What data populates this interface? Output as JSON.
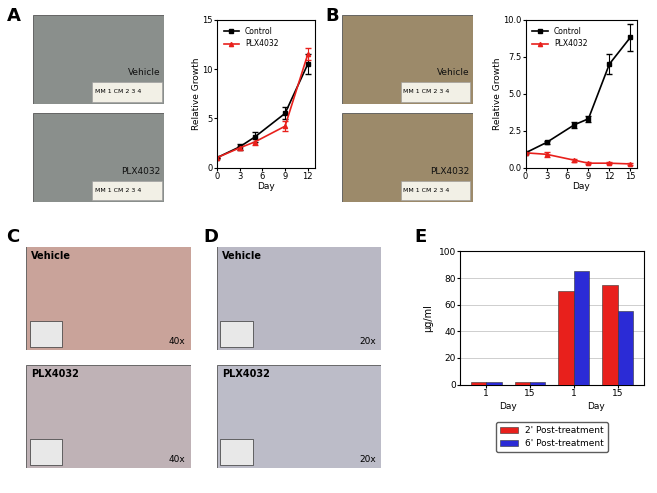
{
  "panel_labels": [
    "A",
    "B",
    "C",
    "D",
    "E"
  ],
  "images": [
    {
      "panel": "A",
      "label": "Vehicle",
      "ruler": "MM 1 CM 2 3 4"
    },
    {
      "panel": "A",
      "label": "PLX4032",
      "ruler": "MM 1 CM 2 3 4"
    },
    {
      "panel": "B",
      "label": "Vehicle",
      "ruler": "MM 1 CM 2 3 4"
    },
    {
      "panel": "B",
      "label": "PLX4032",
      "ruler": "MM 1 CM 2 3 4"
    },
    {
      "panel": "C",
      "label": "Vehicle",
      "magnification": "40x"
    },
    {
      "panel": "C",
      "label": "PLX4032",
      "magnification": "40x"
    },
    {
      "panel": "D",
      "label": "Vehicle",
      "magnification": "20x"
    },
    {
      "panel": "D",
      "label": "PLX4032",
      "magnification": "20x"
    }
  ],
  "chart_data": [
    {
      "panel": "A",
      "type": "line",
      "x_label": "Day",
      "y_label": "Relative Growth",
      "xlim": [
        0,
        13
      ],
      "xticks": [
        0,
        3,
        6,
        9,
        12
      ],
      "ylim": [
        0,
        15
      ],
      "yticks": [
        0,
        5,
        10,
        15
      ],
      "legend": "upper left",
      "series": [
        {
          "name": "Control",
          "color": "#000000",
          "marker": "square",
          "x": [
            0,
            3,
            5,
            9,
            12
          ],
          "values": [
            1,
            2.1,
            3.1,
            5.5,
            10.5
          ],
          "errors": [
            0,
            0.3,
            0.5,
            0.6,
            1.0
          ]
        },
        {
          "name": "PLX4032",
          "color": "#e8201c",
          "marker": "triangle",
          "x": [
            0,
            3,
            5,
            9,
            12
          ],
          "values": [
            1,
            2.0,
            2.6,
            4.2,
            11.5
          ],
          "errors": [
            0,
            0.2,
            0.3,
            0.5,
            0.6
          ]
        }
      ]
    },
    {
      "panel": "B",
      "type": "line",
      "x_label": "Day",
      "y_label": "Relative Growth",
      "xlim": [
        0,
        16
      ],
      "xticks": [
        0,
        3,
        6,
        9,
        12,
        15
      ],
      "ylim": [
        0,
        10
      ],
      "yticks": [
        {
          "value": 0,
          "label": "0.0"
        },
        {
          "value": 2.5,
          "label": "2.5"
        },
        {
          "value": 5,
          "label": "5.0"
        },
        {
          "value": 7.5,
          "label": "7.5"
        },
        {
          "value": 10,
          "label": "10.0"
        }
      ],
      "legend": "upper left",
      "series": [
        {
          "name": "Control",
          "color": "#000000",
          "marker": "square",
          "x": [
            0,
            3,
            7,
            9,
            12,
            15
          ],
          "values": [
            1,
            1.7,
            2.9,
            3.3,
            7.0,
            8.8
          ],
          "errors": [
            0,
            0.1,
            0.2,
            0.2,
            0.7,
            0.9
          ]
        },
        {
          "name": "PLX4032",
          "color": "#e8201c",
          "marker": "triangle",
          "x": [
            0,
            3,
            7,
            9,
            12,
            15
          ],
          "values": [
            1,
            0.9,
            0.5,
            0.3,
            0.3,
            0.25
          ],
          "errors": [
            0,
            0.15,
            0.1,
            0.05,
            0.05,
            0.05
          ]
        }
      ]
    },
    {
      "panel": "E",
      "type": "bar",
      "y_label": "µg/ml",
      "categories": [
        "1",
        "15",
        "1",
        "15"
      ],
      "group_labels": [
        "Day",
        "Day"
      ],
      "ylim": [
        0,
        100
      ],
      "yticks": [
        0,
        20,
        40,
        60,
        80,
        100
      ],
      "grid": true,
      "legend": "lower center",
      "series": [
        {
          "name": "2' Post-treatment",
          "color": "#e8201c",
          "values": [
            2,
            2,
            70,
            75
          ]
        },
        {
          "name": "6' Post-treatment",
          "color": "#2b2bd6",
          "values": [
            2,
            2,
            85,
            55
          ]
        }
      ]
    }
  ]
}
